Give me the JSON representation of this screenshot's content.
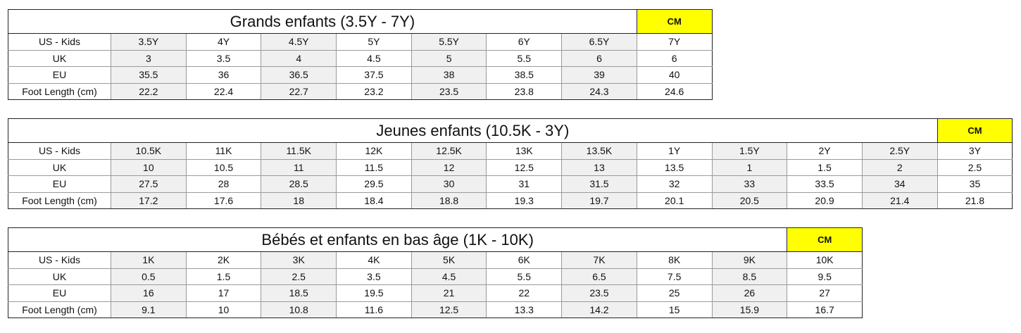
{
  "row_labels": [
    "US - Kids",
    "UK",
    "EU",
    "Foot Length (cm)"
  ],
  "tables": [
    {
      "title": "Grands enfants (3.5Y - 7Y)",
      "cm_label": "CM",
      "rows": [
        [
          "3.5Y",
          "4Y",
          "4.5Y",
          "5Y",
          "5.5Y",
          "6Y",
          "6.5Y",
          "7Y"
        ],
        [
          "3",
          "3.5",
          "4",
          "4.5",
          "5",
          "5.5",
          "6",
          "6"
        ],
        [
          "35.5",
          "36",
          "36.5",
          "37.5",
          "38",
          "38.5",
          "39",
          "40"
        ],
        [
          "22.2",
          "22.4",
          "22.7",
          "23.2",
          "23.5",
          "23.8",
          "24.3",
          "24.6"
        ]
      ]
    },
    {
      "title": "Jeunes enfants (10.5K - 3Y)",
      "cm_label": "CM",
      "rows": [
        [
          "10.5K",
          "11K",
          "11.5K",
          "12K",
          "12.5K",
          "13K",
          "13.5K",
          "1Y",
          "1.5Y",
          "2Y",
          "2.5Y",
          "3Y"
        ],
        [
          "10",
          "10.5",
          "11",
          "11.5",
          "12",
          "12.5",
          "13",
          "13.5",
          "1",
          "1.5",
          "2",
          "2.5"
        ],
        [
          "27.5",
          "28",
          "28.5",
          "29.5",
          "30",
          "31",
          "31.5",
          "32",
          "33",
          "33.5",
          "34",
          "35"
        ],
        [
          "17.2",
          "17.6",
          "18",
          "18.4",
          "18.8",
          "19.3",
          "19.7",
          "20.1",
          "20.5",
          "20.9",
          "21.4",
          "21.8"
        ]
      ]
    },
    {
      "title": "Bébés et enfants en bas âge (1K - 10K)",
      "cm_label": "CM",
      "rows": [
        [
          "1K",
          "2K",
          "3K",
          "4K",
          "5K",
          "6K",
          "7K",
          "8K",
          "9K",
          "10K"
        ],
        [
          "0.5",
          "1.5",
          "2.5",
          "3.5",
          "4.5",
          "5.5",
          "6.5",
          "7.5",
          "8.5",
          "9.5"
        ],
        [
          "16",
          "17",
          "18.5",
          "19.5",
          "21",
          "22",
          "23.5",
          "25",
          "26",
          "27"
        ],
        [
          "9.1",
          "10",
          "10.8",
          "11.6",
          "12.5",
          "13.3",
          "14.2",
          "15",
          "15.9",
          "16.7"
        ]
      ]
    }
  ],
  "colors": {
    "cm_highlight": "#ffff00",
    "alt_column": "#f0f0f0",
    "border": "#9a9a9a"
  }
}
